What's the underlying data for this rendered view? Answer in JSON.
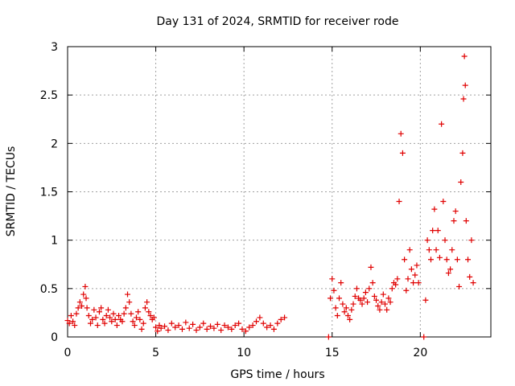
{
  "chart_data": {
    "type": "scatter",
    "title": "Day 131 of 2024, SRMTID for receiver rode",
    "xlabel": "GPS time / hours",
    "ylabel": "SRMTID / TECUs",
    "xlim": [
      0,
      24
    ],
    "ylim": [
      0,
      3
    ],
    "x_ticks": [
      0,
      5,
      10,
      15,
      20
    ],
    "x_tick_labels": [
      "0",
      "5",
      "10",
      "15",
      "20"
    ],
    "y_ticks": [
      0,
      0.5,
      1,
      1.5,
      2,
      2.5,
      3
    ],
    "y_tick_labels": [
      "0",
      "0.5",
      "1",
      "1.5",
      "2",
      "2.5",
      "3"
    ],
    "grid": true,
    "marker": "+",
    "series": [
      {
        "name": "SRMTID",
        "color": "#e00000",
        "points": [
          [
            0.0,
            0.17
          ],
          [
            0.1,
            0.14
          ],
          [
            0.2,
            0.22
          ],
          [
            0.3,
            0.16
          ],
          [
            0.4,
            0.12
          ],
          [
            0.5,
            0.24
          ],
          [
            0.6,
            0.3
          ],
          [
            0.7,
            0.36
          ],
          [
            0.8,
            0.32
          ],
          [
            0.9,
            0.44
          ],
          [
            1.0,
            0.52
          ],
          [
            1.05,
            0.4
          ],
          [
            1.1,
            0.3
          ],
          [
            1.2,
            0.22
          ],
          [
            1.3,
            0.14
          ],
          [
            1.4,
            0.18
          ],
          [
            1.5,
            0.28
          ],
          [
            1.6,
            0.2
          ],
          [
            1.7,
            0.12
          ],
          [
            1.8,
            0.26
          ],
          [
            1.9,
            0.3
          ],
          [
            2.0,
            0.18
          ],
          [
            2.1,
            0.14
          ],
          [
            2.2,
            0.22
          ],
          [
            2.3,
            0.28
          ],
          [
            2.4,
            0.2
          ],
          [
            2.5,
            0.16
          ],
          [
            2.6,
            0.24
          ],
          [
            2.7,
            0.18
          ],
          [
            2.8,
            0.12
          ],
          [
            2.9,
            0.22
          ],
          [
            3.0,
            0.18
          ],
          [
            3.1,
            0.16
          ],
          [
            3.2,
            0.24
          ],
          [
            3.3,
            0.3
          ],
          [
            3.4,
            0.44
          ],
          [
            3.5,
            0.36
          ],
          [
            3.6,
            0.24
          ],
          [
            3.7,
            0.16
          ],
          [
            3.8,
            0.12
          ],
          [
            3.9,
            0.2
          ],
          [
            4.0,
            0.26
          ],
          [
            4.1,
            0.18
          ],
          [
            4.2,
            0.08
          ],
          [
            4.3,
            0.14
          ],
          [
            4.4,
            0.3
          ],
          [
            4.5,
            0.36
          ],
          [
            4.6,
            0.26
          ],
          [
            4.7,
            0.22
          ],
          [
            4.8,
            0.18
          ],
          [
            4.9,
            0.2
          ],
          [
            5.0,
            0.1
          ],
          [
            5.1,
            0.06
          ],
          [
            5.2,
            0.12
          ],
          [
            5.3,
            0.09
          ],
          [
            5.5,
            0.11
          ],
          [
            5.7,
            0.07
          ],
          [
            5.9,
            0.14
          ],
          [
            6.1,
            0.1
          ],
          [
            6.3,
            0.12
          ],
          [
            6.5,
            0.08
          ],
          [
            6.7,
            0.15
          ],
          [
            6.9,
            0.09
          ],
          [
            7.1,
            0.13
          ],
          [
            7.3,
            0.07
          ],
          [
            7.5,
            0.1
          ],
          [
            7.7,
            0.14
          ],
          [
            7.9,
            0.08
          ],
          [
            8.1,
            0.11
          ],
          [
            8.3,
            0.09
          ],
          [
            8.5,
            0.13
          ],
          [
            8.7,
            0.07
          ],
          [
            8.9,
            0.12
          ],
          [
            9.1,
            0.1
          ],
          [
            9.3,
            0.08
          ],
          [
            9.5,
            0.12
          ],
          [
            9.7,
            0.14
          ],
          [
            9.9,
            0.08
          ],
          [
            10.1,
            0.06
          ],
          [
            10.3,
            0.1
          ],
          [
            10.5,
            0.12
          ],
          [
            10.7,
            0.16
          ],
          [
            10.9,
            0.2
          ],
          [
            11.1,
            0.14
          ],
          [
            11.3,
            0.1
          ],
          [
            11.5,
            0.12
          ],
          [
            11.7,
            0.08
          ],
          [
            11.9,
            0.14
          ],
          [
            12.1,
            0.18
          ],
          [
            12.3,
            0.2
          ],
          [
            14.8,
            0.0
          ],
          [
            14.9,
            0.4
          ],
          [
            15.0,
            0.6
          ],
          [
            15.1,
            0.48
          ],
          [
            15.2,
            0.3
          ],
          [
            15.3,
            0.22
          ],
          [
            15.4,
            0.4
          ],
          [
            15.5,
            0.56
          ],
          [
            15.6,
            0.34
          ],
          [
            15.7,
            0.26
          ],
          [
            15.8,
            0.3
          ],
          [
            15.9,
            0.22
          ],
          [
            16.0,
            0.18
          ],
          [
            16.1,
            0.28
          ],
          [
            16.2,
            0.34
          ],
          [
            16.3,
            0.42
          ],
          [
            16.4,
            0.5
          ],
          [
            16.5,
            0.4
          ],
          [
            16.6,
            0.38
          ],
          [
            16.7,
            0.34
          ],
          [
            16.8,
            0.4
          ],
          [
            16.9,
            0.46
          ],
          [
            17.0,
            0.36
          ],
          [
            17.1,
            0.5
          ],
          [
            17.2,
            0.72
          ],
          [
            17.3,
            0.56
          ],
          [
            17.4,
            0.42
          ],
          [
            17.5,
            0.38
          ],
          [
            17.6,
            0.32
          ],
          [
            17.7,
            0.28
          ],
          [
            17.8,
            0.36
          ],
          [
            17.9,
            0.44
          ],
          [
            18.0,
            0.34
          ],
          [
            18.1,
            0.28
          ],
          [
            18.2,
            0.4
          ],
          [
            18.3,
            0.36
          ],
          [
            18.4,
            0.5
          ],
          [
            18.5,
            0.56
          ],
          [
            18.6,
            0.54
          ],
          [
            18.7,
            0.6
          ],
          [
            18.8,
            1.4
          ],
          [
            18.9,
            2.1
          ],
          [
            19.0,
            1.9
          ],
          [
            19.1,
            0.8
          ],
          [
            19.2,
            0.48
          ],
          [
            19.3,
            0.6
          ],
          [
            19.4,
            0.9
          ],
          [
            19.5,
            0.7
          ],
          [
            19.6,
            0.56
          ],
          [
            19.7,
            0.64
          ],
          [
            19.8,
            0.74
          ],
          [
            19.9,
            0.56
          ],
          [
            20.2,
            0.0
          ],
          [
            20.3,
            0.38
          ],
          [
            20.4,
            1.0
          ],
          [
            20.5,
            0.9
          ],
          [
            20.6,
            0.8
          ],
          [
            20.7,
            1.1
          ],
          [
            20.8,
            1.32
          ],
          [
            20.9,
            0.9
          ],
          [
            21.0,
            1.1
          ],
          [
            21.1,
            0.82
          ],
          [
            21.2,
            2.2
          ],
          [
            21.3,
            1.4
          ],
          [
            21.4,
            1.0
          ],
          [
            21.5,
            0.8
          ],
          [
            21.6,
            0.66
          ],
          [
            21.7,
            0.7
          ],
          [
            21.8,
            0.9
          ],
          [
            21.9,
            1.2
          ],
          [
            22.0,
            1.3
          ],
          [
            22.1,
            0.8
          ],
          [
            22.2,
            0.52
          ],
          [
            22.3,
            1.6
          ],
          [
            22.4,
            1.9
          ],
          [
            22.45,
            2.46
          ],
          [
            22.5,
            2.9
          ],
          [
            22.55,
            2.6
          ],
          [
            22.6,
            1.2
          ],
          [
            22.7,
            0.8
          ],
          [
            22.8,
            0.62
          ],
          [
            22.9,
            1.0
          ],
          [
            23.0,
            0.56
          ]
        ]
      }
    ]
  }
}
